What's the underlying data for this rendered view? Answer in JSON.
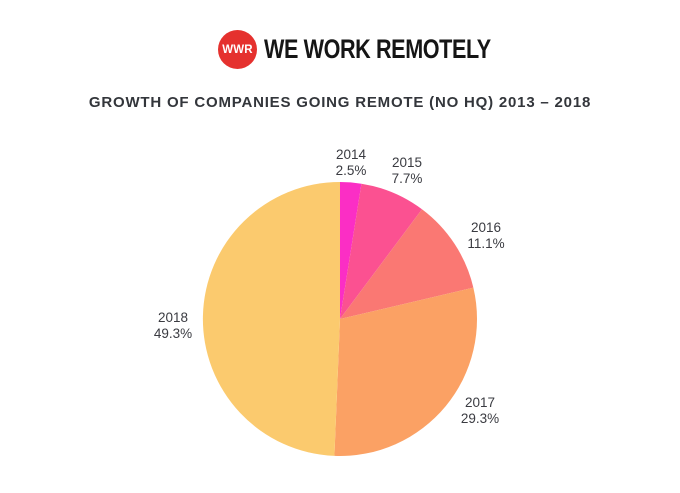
{
  "brand": {
    "badge_text": "WWR",
    "wordmark": "WE WORK REMOTELY",
    "badge_color": "#E5312E",
    "badge_text_color": "#FFFFFF",
    "wordmark_color": "#151515"
  },
  "chart_title": "GROWTH OF COMPANIES GOING REMOTE (NO HQ) 2013 – 2018",
  "chart_data": {
    "type": "pie",
    "title": "GROWTH OF COMPANIES GOING REMOTE (NO HQ) 2013 – 2018",
    "categories": [
      "2014",
      "2015",
      "2016",
      "2017",
      "2018"
    ],
    "values": [
      2.5,
      7.7,
      11.1,
      29.3,
      49.3
    ],
    "value_labels": [
      "2.5%",
      "7.7%",
      "11.1%",
      "29.3%",
      "49.3%"
    ],
    "unit": "%",
    "colors": [
      "#FB2EC5",
      "#FB5191",
      "#FA7873",
      "#FBA164",
      "#FBCA6E"
    ],
    "start_angle_deg": 0,
    "direction": "clockwise",
    "label_position": "outside",
    "legend": "none",
    "label_text_color": "#3A3B41"
  }
}
